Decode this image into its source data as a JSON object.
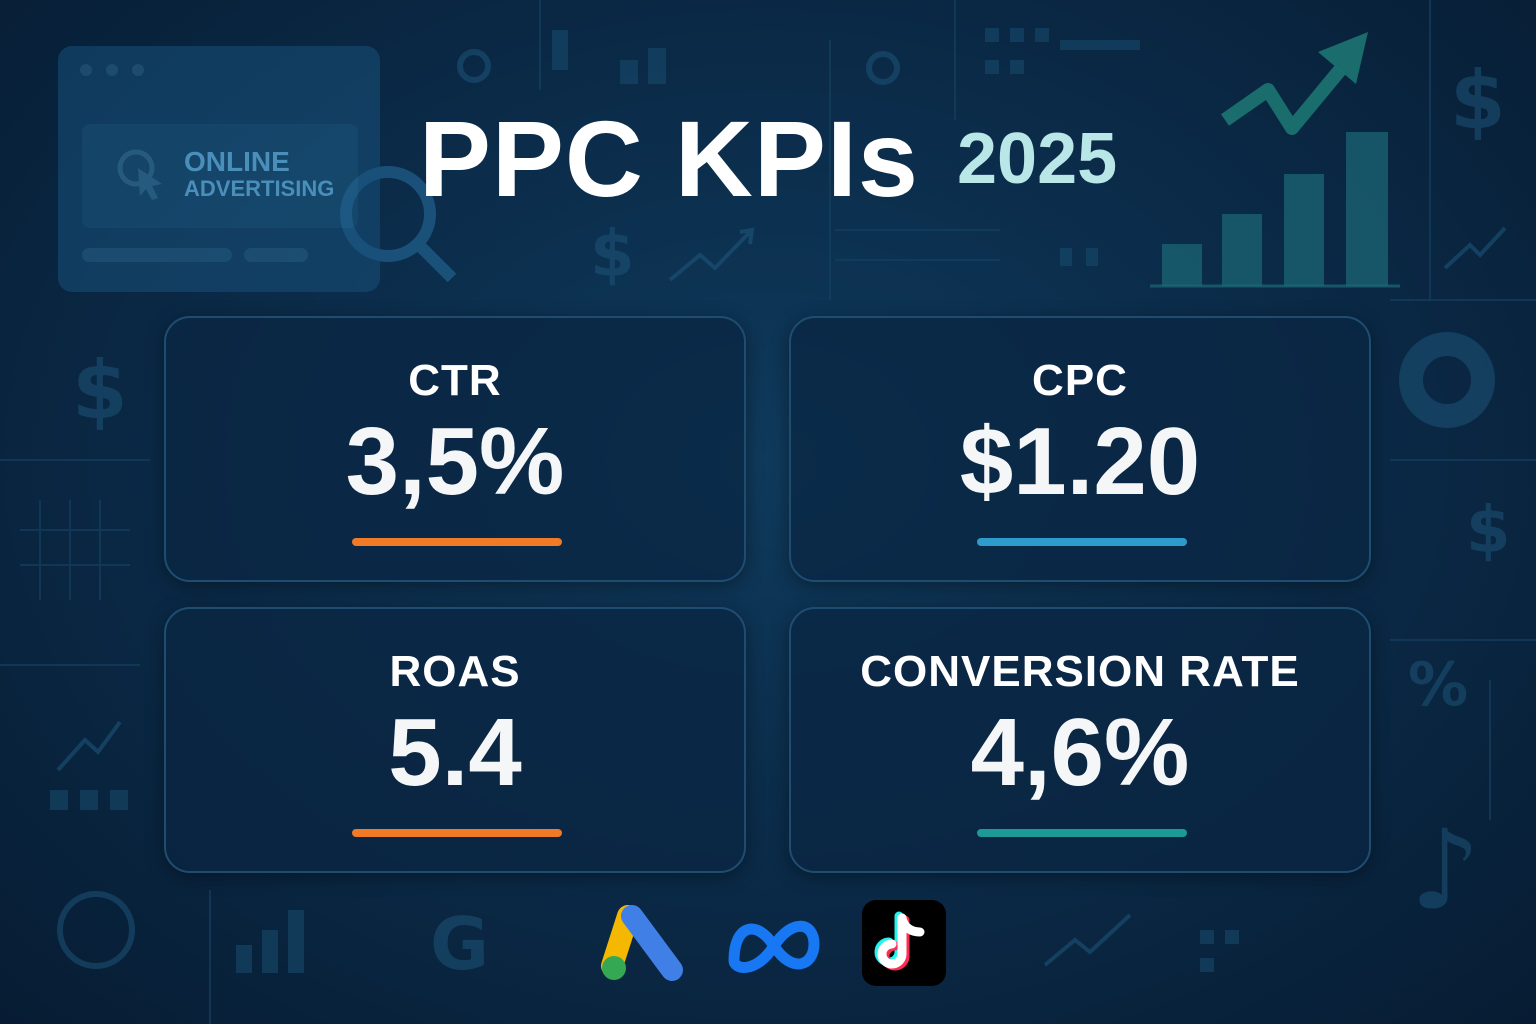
{
  "title": {
    "main": "PPC KPIs",
    "year": "2025"
  },
  "illustration": {
    "ad_line1": "ONLINE",
    "ad_line2": "ADVERTISING"
  },
  "kpis": [
    {
      "label": "CTR",
      "value": "3,5%",
      "accent": "#f07a25"
    },
    {
      "label": "CPC",
      "value": "$1.20",
      "accent": "#2d9ccc"
    },
    {
      "label": "ROAS",
      "value": "5.4",
      "accent": "#f07a25"
    },
    {
      "label": "CONVERSION RATE",
      "value": "4,6%",
      "accent": "#1b9a96"
    }
  ],
  "platforms": [
    "google-ads-icon",
    "meta-icon",
    "tiktok-icon"
  ],
  "colors": {
    "background": "#0b2c4a",
    "title_year": "#b9e6e6",
    "card_border": "#1f4d70"
  }
}
